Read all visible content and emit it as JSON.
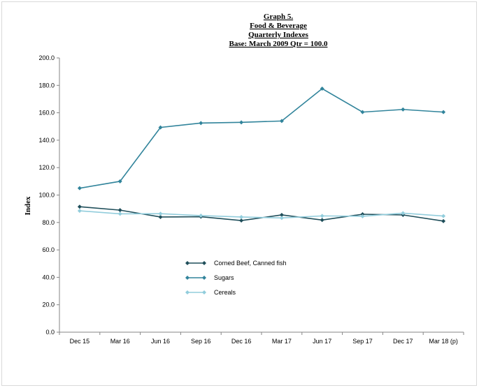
{
  "chart_data": {
    "type": "line",
    "title_lines": [
      "Graph 5.",
      "Food & Beverage",
      "Quarterly Indexes",
      "Base: March 2009 Qtr  = 100.0"
    ],
    "xlabel": "",
    "ylabel": "Index",
    "ylim": [
      0,
      200
    ],
    "yticks": [
      0,
      20,
      40,
      60,
      80,
      100,
      120,
      140,
      160,
      180,
      200
    ],
    "ytick_labels": [
      "0.0",
      "20.0",
      "40.0",
      "60.0",
      "80.0",
      "100.0",
      "120.0",
      "140.0",
      "160.0",
      "180.0",
      "200.0"
    ],
    "grid": false,
    "legend_position": "center-left",
    "categories": [
      "Dec  15",
      "Mar 16",
      "Jun 16",
      "Sep 16",
      "Dec 16",
      "Mar 17",
      "Jun 17",
      "Sep 17",
      "Dec 17",
      "Mar 18 (p)"
    ],
    "series": [
      {
        "name": "Corned Beef, Canned fish",
        "color": "#1f4e5a",
        "values": [
          91.5,
          89.0,
          84.0,
          84.2,
          81.4,
          85.5,
          81.8,
          86.0,
          85.5,
          81.0
        ]
      },
      {
        "name": "Sugars",
        "color": "#31849b",
        "values": [
          105.0,
          110.0,
          149.3,
          152.5,
          153.0,
          154.0,
          177.6,
          160.5,
          162.4,
          160.5
        ]
      },
      {
        "name": "Cereals",
        "color": "#92cddc",
        "values": [
          88.5,
          86.3,
          86.4,
          85.0,
          84.0,
          83.3,
          84.8,
          84.5,
          86.8,
          84.7
        ]
      }
    ]
  }
}
